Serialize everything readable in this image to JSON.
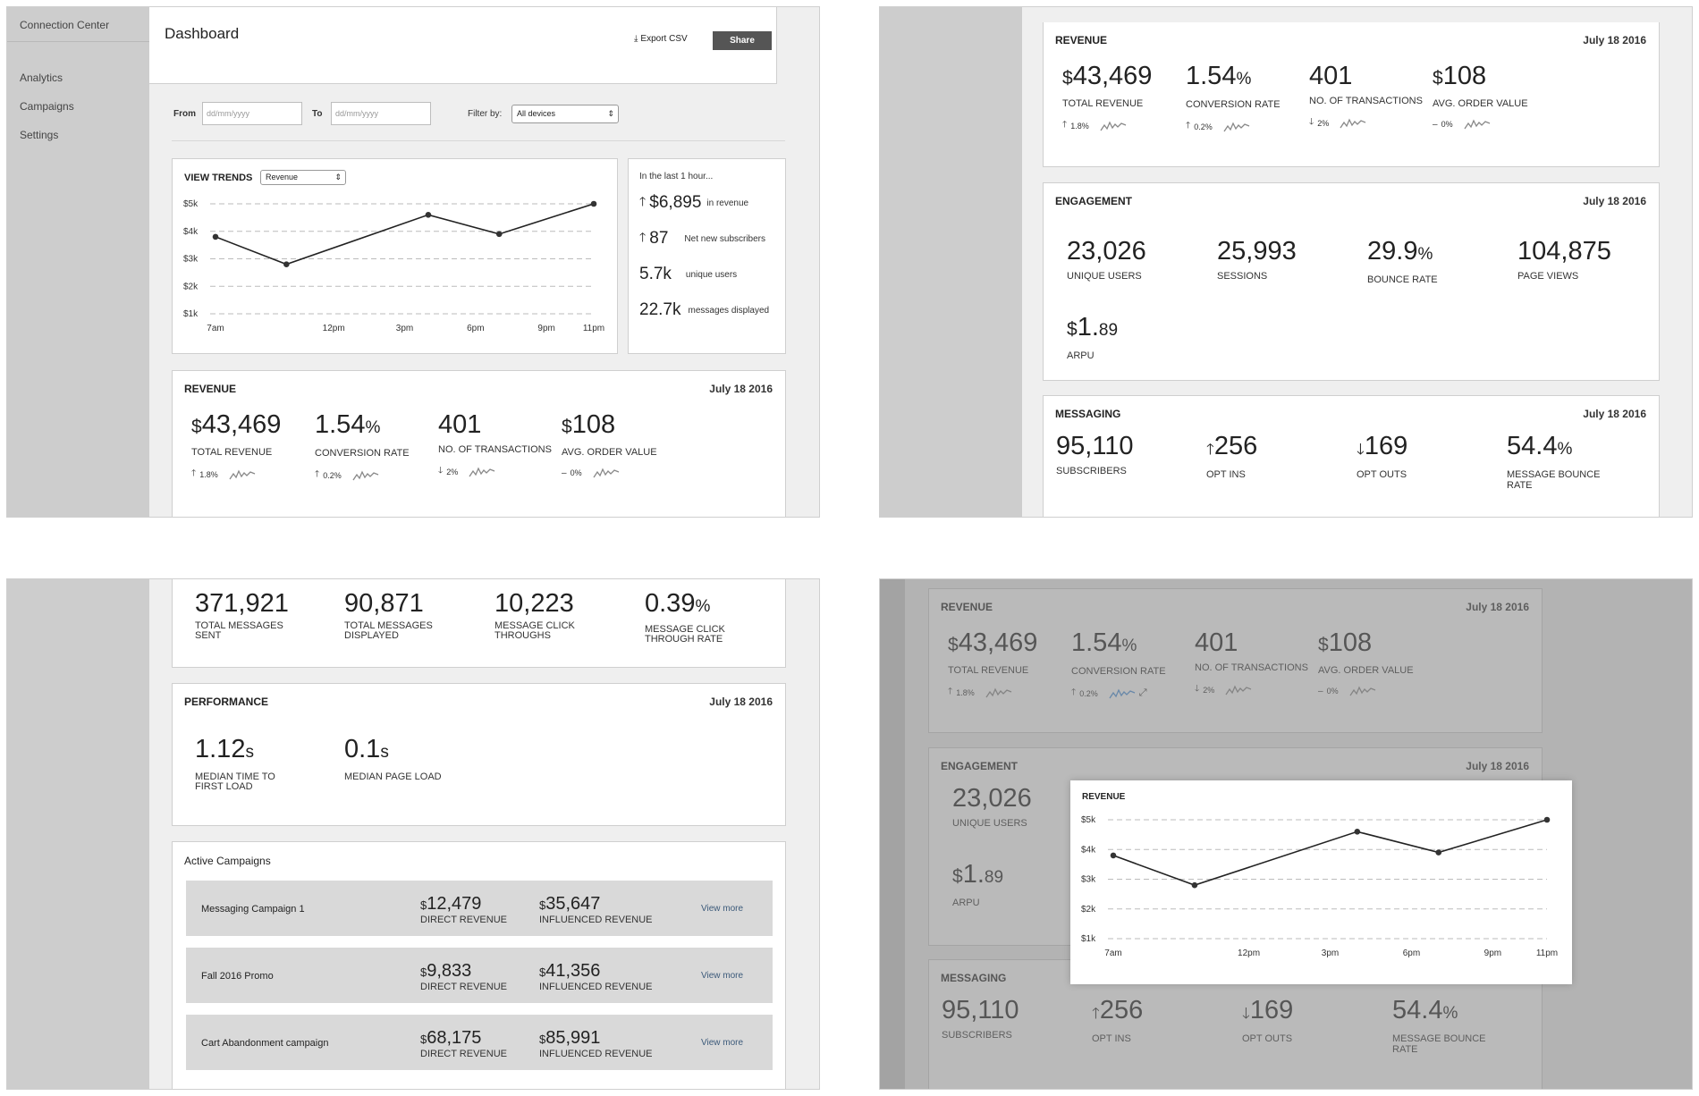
{
  "app": {
    "brand": "Connection Center",
    "nav": [
      "Analytics",
      "Campaigns",
      "Settings"
    ]
  },
  "header": {
    "title": "Dashboard",
    "export_label": "Export CSV",
    "share_label": "Share"
  },
  "filters": {
    "from_label": "From",
    "to_label": "To",
    "date_placeholder": "dd/mm/yyyy",
    "filter_label": "Filter by:",
    "filter_value": "All devices"
  },
  "trends": {
    "title": "VIEW TRENDS",
    "metric_select": "Revenue",
    "popup_title": "REVENUE"
  },
  "chart_data": {
    "type": "line",
    "title": "",
    "xlabel": "",
    "ylabel": "",
    "x": [
      "7am",
      "12pm",
      "3pm",
      "6pm",
      "9pm",
      "11pm"
    ],
    "x_positions_hours": [
      7,
      12,
      15,
      18,
      21,
      23
    ],
    "points": [
      [
        7,
        3.8
      ],
      [
        10,
        2.8
      ],
      [
        16,
        4.6
      ],
      [
        19,
        3.9
      ],
      [
        23,
        5.0
      ]
    ],
    "yticks": [
      "$1k",
      "$2k",
      "$3k",
      "$4k",
      "$5k"
    ],
    "ylim": [
      1,
      5
    ],
    "grid": true
  },
  "last_hour": {
    "title": "In the last 1 hour...",
    "rows": [
      {
        "value": "$6,895",
        "label": "in revenue",
        "arrow": "up"
      },
      {
        "value": "87",
        "label": "Net new subscribers",
        "arrow": "up"
      },
      {
        "value": "5.7k",
        "label": "unique users",
        "arrow": ""
      },
      {
        "value": "22.7k",
        "label": "messages displayed",
        "arrow": ""
      }
    ]
  },
  "revenue": {
    "title": "REVENUE",
    "date": "July 18 2016",
    "metrics": [
      {
        "prefix": "$",
        "value": "43,469",
        "suffix": "",
        "label": "TOTAL REVENUE",
        "trend": "1.8%",
        "dir": "up"
      },
      {
        "prefix": "",
        "value": "1.54",
        "suffix": "%",
        "label": "CONVERSION RATE",
        "trend": "0.2%",
        "dir": "up"
      },
      {
        "prefix": "",
        "value": "401",
        "suffix": "",
        "label": "NO. OF TRANSACTIONS",
        "trend": "2%",
        "dir": "down"
      },
      {
        "prefix": "$",
        "value": "108",
        "suffix": "",
        "label": "AVG. ORDER VALUE",
        "trend": "0%",
        "dir": "flat"
      }
    ]
  },
  "engagement": {
    "title": "ENGAGEMENT",
    "date": "July 18 2016",
    "metrics": [
      {
        "prefix": "",
        "value": "23,026",
        "suffix": "",
        "label": "UNIQUE USERS"
      },
      {
        "prefix": "",
        "value": "25,993",
        "suffix": "",
        "label": "SESSIONS"
      },
      {
        "prefix": "",
        "value": "29.9",
        "suffix": "%",
        "label": "BOUNCE RATE"
      },
      {
        "prefix": "",
        "value": "104,875",
        "suffix": "",
        "label": "PAGE VIEWS"
      },
      {
        "prefix": "$",
        "value": "1.",
        "suffix": "89",
        "label": "ARPU"
      }
    ]
  },
  "messaging": {
    "title": "MESSAGING",
    "date": "July 18 2016",
    "metrics": [
      {
        "prefix": "",
        "value": "95,110",
        "suffix": "",
        "label": "SUBSCRIBERS",
        "arrow": ""
      },
      {
        "prefix": "",
        "value": "256",
        "suffix": "",
        "label": "OPT INS",
        "arrow": "up"
      },
      {
        "prefix": "",
        "value": "169",
        "suffix": "",
        "label": "OPT OUTS",
        "arrow": "down"
      },
      {
        "prefix": "",
        "value": "54.4",
        "suffix": "%",
        "label": "MESSAGE BOUNCE RATE",
        "arrow": ""
      }
    ],
    "totals": [
      {
        "value": "371,921",
        "suffix": "",
        "label": "TOTAL MESSAGES SENT"
      },
      {
        "value": "90,871",
        "suffix": "",
        "label": "TOTAL MESSAGES DISPLAYED"
      },
      {
        "value": "10,223",
        "suffix": "",
        "label": "MESSAGE CLICK THROUGHS"
      },
      {
        "value": "0.39",
        "suffix": "%",
        "label": "MESSAGE CLICK THROUGH RATE"
      }
    ]
  },
  "performance": {
    "title": "PERFORMANCE",
    "date": "July 18 2016",
    "metrics": [
      {
        "value": "1.12",
        "suffix": "s",
        "label": "MEDIAN TIME TO FIRST LOAD"
      },
      {
        "value": "0.1",
        "suffix": "s",
        "label": "MEDIAN PAGE LOAD"
      }
    ]
  },
  "campaigns": {
    "title": "Active Campaigns",
    "direct_label": "DIRECT REVENUE",
    "influenced_label": "INFLUENCED REVENUE",
    "view_more": "View more",
    "items": [
      {
        "name": "Messaging Campaign 1",
        "direct": "12,479",
        "influenced": "35,647"
      },
      {
        "name": "Fall 2016 Promo",
        "direct": "9,833",
        "influenced": "41,356"
      },
      {
        "name": "Cart Abandonment campaign",
        "direct": "68,175",
        "influenced": "85,991"
      }
    ]
  },
  "colors": {
    "sidebar": "#cdcdcd",
    "background": "#efefef",
    "button": "#555555",
    "spark": "#888888",
    "spark_active": "#4a90d9"
  }
}
